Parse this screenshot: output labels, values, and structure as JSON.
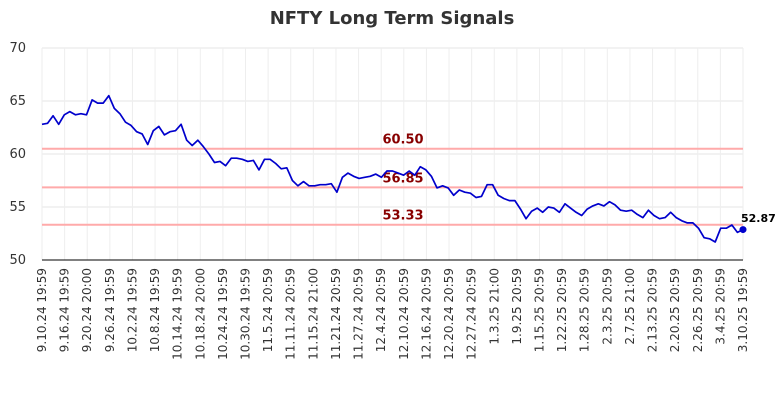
{
  "chart_data": {
    "type": "line",
    "title": "NFTY Long Term Signals",
    "xlabel": "",
    "ylabel": "",
    "ylim": [
      50,
      70
    ],
    "yticks": [
      50,
      55,
      60,
      65,
      70
    ],
    "grid": true,
    "x_tick_labels": [
      "9.10.24 19:59",
      "9.16.24 19:59",
      "9.20.24 20:00",
      "9.26.24 19:59",
      "10.2.24 19:59",
      "10.8.24 19:59",
      "10.14.24 19:59",
      "10.18.24 20:00",
      "10.24.24 19:59",
      "10.30.24 19:59",
      "11.5.24 20:59",
      "11.11.24 20:59",
      "11.15.24 21:00",
      "11.21.24 20:59",
      "11.27.24 20:59",
      "12.4.24 20:59",
      "12.10.24 20:59",
      "12.16.24 20:59",
      "12.20.24 20:59",
      "12.27.24 20:59",
      "1.3.25 21:00",
      "1.9.25 20:59",
      "1.15.25 20:59",
      "1.22.25 20:59",
      "1.28.25 20:59",
      "2.3.25 20:59",
      "2.7.25 21:00",
      "2.13.25 20:59",
      "2.20.25 20:59",
      "2.26.25 20:59",
      "3.4.25 20:59",
      "3.10.25 19:59"
    ],
    "series": [
      {
        "color": "#0000cc",
        "values": [
          62.8,
          62.9,
          63.6,
          62.8,
          63.7,
          64.0,
          63.7,
          63.8,
          63.7,
          65.1,
          64.8,
          64.8,
          65.5,
          64.3,
          63.8,
          63.0,
          62.7,
          62.1,
          61.9,
          60.9,
          62.2,
          62.6,
          61.8,
          62.1,
          62.2,
          62.8,
          61.3,
          60.8,
          61.3,
          60.7,
          60.0,
          59.2,
          59.3,
          58.9,
          59.6,
          59.6,
          59.5,
          59.3,
          59.4,
          58.5,
          59.5,
          59.5,
          59.1,
          58.6,
          58.7,
          57.5,
          57.0,
          57.4,
          57.0,
          57.0,
          57.1,
          57.1,
          57.2,
          56.4,
          57.8,
          58.2,
          57.9,
          57.7,
          57.8,
          57.9,
          58.1,
          57.8,
          58.4,
          58.4,
          58.2,
          58.0,
          58.4,
          58.0,
          58.8,
          58.5,
          57.9,
          56.8,
          57.0,
          56.8,
          56.1,
          56.6,
          56.4,
          56.3,
          55.9,
          56.0,
          57.1,
          57.1,
          56.1,
          55.8,
          55.6,
          55.6,
          54.8,
          53.9,
          54.6,
          54.9,
          54.5,
          55.0,
          54.9,
          54.5,
          55.3,
          54.9,
          54.5,
          54.2,
          54.8,
          55.1,
          55.3,
          55.1,
          55.5,
          55.2,
          54.7,
          54.6,
          54.7,
          54.3,
          54.0,
          54.7,
          54.2,
          53.9,
          54.0,
          54.5,
          54.0,
          53.7,
          53.5,
          53.5,
          53.0,
          52.1,
          52.0,
          51.7,
          53.0,
          53.0,
          53.3,
          52.6,
          52.87
        ]
      }
    ],
    "reference_lines": [
      {
        "value": 60.5,
        "label": "60.50",
        "color": "#ffaaaa"
      },
      {
        "value": 56.85,
        "label": "56.85",
        "color": "#ffaaaa"
      },
      {
        "value": 53.33,
        "label": "53.33",
        "color": "#ffaaaa"
      }
    ],
    "last_value_label": "52.87"
  }
}
